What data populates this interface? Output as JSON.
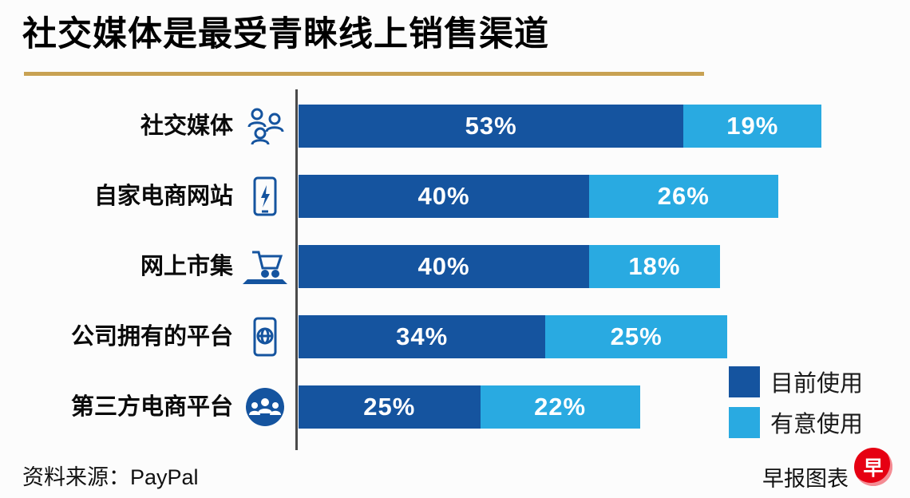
{
  "title": "社交媒体是最受青睐线上销售渠道",
  "chart_data": {
    "type": "bar",
    "orientation": "horizontal",
    "stacked": true,
    "title": "社交媒体是最受青睐线上销售渠道",
    "categories": [
      "社交媒体",
      "自家电商网站",
      "网上市集",
      "公司拥有的平台",
      "第三方电商平台"
    ],
    "series": [
      {
        "name": "目前使用",
        "color": "#15549f",
        "values": [
          53,
          40,
          40,
          34,
          25
        ],
        "labels": [
          "53%",
          "40%",
          "40%",
          "34%",
          "25%"
        ]
      },
      {
        "name": "有意使用",
        "color": "#29aae1",
        "values": [
          19,
          26,
          18,
          25,
          22
        ],
        "labels": [
          "19%",
          "26%",
          "18%",
          "25%",
          "22%"
        ]
      }
    ],
    "value_suffix": "%",
    "xlim": [
      0,
      75
    ],
    "grid": false,
    "legend_position": "bottom-right",
    "icons": [
      "social-media-group",
      "phone-lightning",
      "shopping-cart-laptop",
      "phone-globe",
      "people-circle"
    ]
  },
  "footer": {
    "source": "资料来源：PayPal",
    "credit": "早报图表"
  },
  "logo": {
    "char": "早"
  },
  "colors": {
    "dark_blue": "#15549f",
    "light_blue": "#29aae1",
    "gold": "#c8a253",
    "axis": "#4a4a4a",
    "logo_red": "#e60012"
  }
}
